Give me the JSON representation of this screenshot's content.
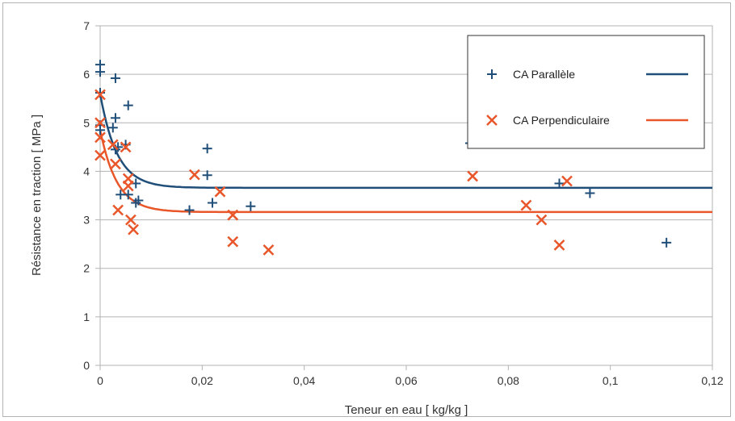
{
  "chart_data": {
    "type": "scatter",
    "title": "",
    "xlabel": "Teneur en eau [ kg/kg ]",
    "ylabel": "Résistance en traction [ MPa ]",
    "xlim": [
      0,
      0.12
    ],
    "ylim": [
      0,
      7
    ],
    "x_ticks": [
      "0",
      "0,02",
      "0,04",
      "0,06",
      "0,08",
      "0,1",
      "0,12"
    ],
    "y_ticks": [
      "0",
      "1",
      "2",
      "3",
      "4",
      "5",
      "6",
      "7"
    ],
    "grid": "horizontal",
    "legend_position": "top-right",
    "series": [
      {
        "name": "CA Parallèle",
        "marker": "plus",
        "color": "#1f4e79",
        "points": [
          [
            0.0,
            6.2
          ],
          [
            0.0,
            6.05
          ],
          [
            0.0,
            5.62
          ],
          [
            0.0,
            4.95
          ],
          [
            0.0,
            4.85
          ],
          [
            0.0025,
            4.9
          ],
          [
            0.003,
            5.92
          ],
          [
            0.003,
            5.1
          ],
          [
            0.003,
            4.45
          ],
          [
            0.0035,
            4.5
          ],
          [
            0.004,
            3.52
          ],
          [
            0.005,
            4.55
          ],
          [
            0.0055,
            5.36
          ],
          [
            0.0055,
            3.52
          ],
          [
            0.007,
            3.75
          ],
          [
            0.007,
            3.35
          ],
          [
            0.0075,
            3.4
          ],
          [
            0.0175,
            3.2
          ],
          [
            0.021,
            3.92
          ],
          [
            0.021,
            4.47
          ],
          [
            0.022,
            3.35
          ],
          [
            0.0295,
            3.28
          ],
          [
            0.0725,
            4.58
          ],
          [
            0.09,
            3.75
          ],
          [
            0.096,
            3.55
          ],
          [
            0.111,
            2.53
          ]
        ]
      },
      {
        "name": "CA Perpendiculaire",
        "marker": "cross",
        "color": "#e8562a",
        "points": [
          [
            0.0,
            5.58
          ],
          [
            0.0,
            5.0
          ],
          [
            0.0,
            4.7
          ],
          [
            0.0,
            4.33
          ],
          [
            0.0025,
            4.55
          ],
          [
            0.003,
            4.15
          ],
          [
            0.0035,
            3.2
          ],
          [
            0.005,
            4.5
          ],
          [
            0.0055,
            3.85
          ],
          [
            0.0055,
            3.7
          ],
          [
            0.006,
            3.0
          ],
          [
            0.0065,
            2.8
          ],
          [
            0.0185,
            3.93
          ],
          [
            0.0235,
            3.58
          ],
          [
            0.026,
            3.1
          ],
          [
            0.026,
            2.55
          ],
          [
            0.033,
            2.38
          ],
          [
            0.073,
            3.9
          ],
          [
            0.0835,
            3.3
          ],
          [
            0.0865,
            3.0
          ],
          [
            0.09,
            2.48
          ],
          [
            0.0915,
            3.8
          ]
        ]
      }
    ],
    "fit_lines": [
      {
        "series": "CA Parallèle",
        "color": "#1f4e79",
        "asymptote": 3.66,
        "start": 5.6,
        "decay": 0.0033
      },
      {
        "series": "CA Perpendiculaire",
        "color": "#e8562a",
        "asymptote": 3.16,
        "start": 4.85,
        "decay": 0.0033
      }
    ]
  }
}
